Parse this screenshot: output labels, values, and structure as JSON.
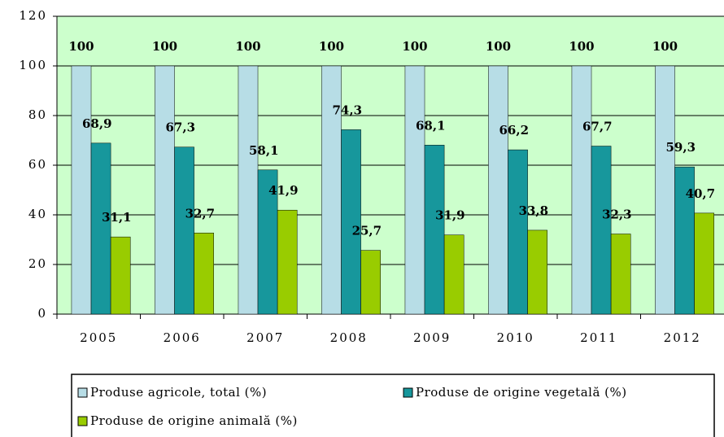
{
  "chart_data": {
    "type": "bar",
    "categories": [
      "2005",
      "2006",
      "2007",
      "2008",
      "2009",
      "2010",
      "2011",
      "2012"
    ],
    "series": [
      {
        "name": "Produse agricole, total (%)",
        "color": "#b7dde6",
        "values": [
          100,
          100,
          100,
          100,
          100,
          100,
          100,
          100
        ]
      },
      {
        "name": "Produse de origine vegetală (%)",
        "color": "#17979c",
        "values": [
          68.9,
          67.3,
          58.1,
          74.3,
          68.1,
          66.2,
          67.7,
          59.3
        ],
        "value_labels": [
          "68,9",
          "67,3",
          "58,1",
          "74,3",
          "68,1",
          "66,2",
          "67,7",
          "59,3"
        ]
      },
      {
        "name": "Produse de origine animală (%)",
        "color": "#99cc00",
        "values": [
          31.1,
          32.7,
          41.9,
          25.7,
          31.9,
          33.8,
          32.3,
          40.7
        ],
        "value_labels": [
          "31,1",
          "32,7",
          "41,9",
          "25,7",
          "31,9",
          "33,8",
          "32,3",
          "40,7"
        ]
      }
    ],
    "ylim": [
      0,
      120
    ],
    "yticks": [
      0,
      20,
      40,
      60,
      80,
      100,
      120
    ],
    "grid": true,
    "legend": "bottom"
  }
}
